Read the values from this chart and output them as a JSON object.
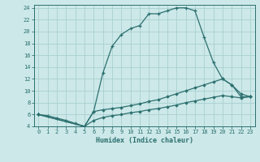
{
  "xlabel": "Humidex (Indice chaleur)",
  "bg_color": "#cce8e8",
  "grid_color": "#aacfcf",
  "line_color": "#2d7070",
  "xlim": [
    -0.5,
    23.5
  ],
  "ylim": [
    4,
    24.5
  ],
  "xticks": [
    0,
    1,
    2,
    3,
    4,
    5,
    6,
    7,
    8,
    9,
    10,
    11,
    12,
    13,
    14,
    15,
    16,
    17,
    18,
    19,
    20,
    21,
    22,
    23
  ],
  "yticks": [
    4,
    6,
    8,
    10,
    12,
    14,
    16,
    18,
    20,
    22,
    24
  ],
  "line1_x": [
    0,
    1,
    2,
    3,
    4,
    5,
    6,
    7,
    8,
    9,
    10,
    11,
    12,
    13,
    14,
    15,
    16,
    17,
    18,
    19,
    20,
    21,
    22,
    23
  ],
  "line1_y": [
    6,
    5.8,
    5.4,
    5.0,
    4.5,
    4.0,
    6.5,
    13,
    17.5,
    19.5,
    20.5,
    21.0,
    23.0,
    23.0,
    23.5,
    24.0,
    24.0,
    23.5,
    19.0,
    14.8,
    12.0,
    11.0,
    9.0,
    9.0
  ],
  "line2_x": [
    0,
    5,
    6,
    7,
    8,
    9,
    10,
    11,
    12,
    13,
    14,
    15,
    16,
    17,
    18,
    19,
    20,
    21,
    22,
    23
  ],
  "line2_y": [
    6,
    4.0,
    6.5,
    6.8,
    7.0,
    7.2,
    7.5,
    7.8,
    8.2,
    8.5,
    9.0,
    9.5,
    10.0,
    10.5,
    11.0,
    11.5,
    12.0,
    11.0,
    9.5,
    9.0
  ],
  "line3_x": [
    0,
    5,
    6,
    7,
    8,
    9,
    10,
    11,
    12,
    13,
    14,
    15,
    16,
    17,
    18,
    19,
    20,
    21,
    22,
    23
  ],
  "line3_y": [
    6,
    4.0,
    5.0,
    5.5,
    5.8,
    6.0,
    6.3,
    6.5,
    6.8,
    7.0,
    7.3,
    7.6,
    8.0,
    8.3,
    8.6,
    8.9,
    9.2,
    9.0,
    8.8,
    9.0
  ]
}
